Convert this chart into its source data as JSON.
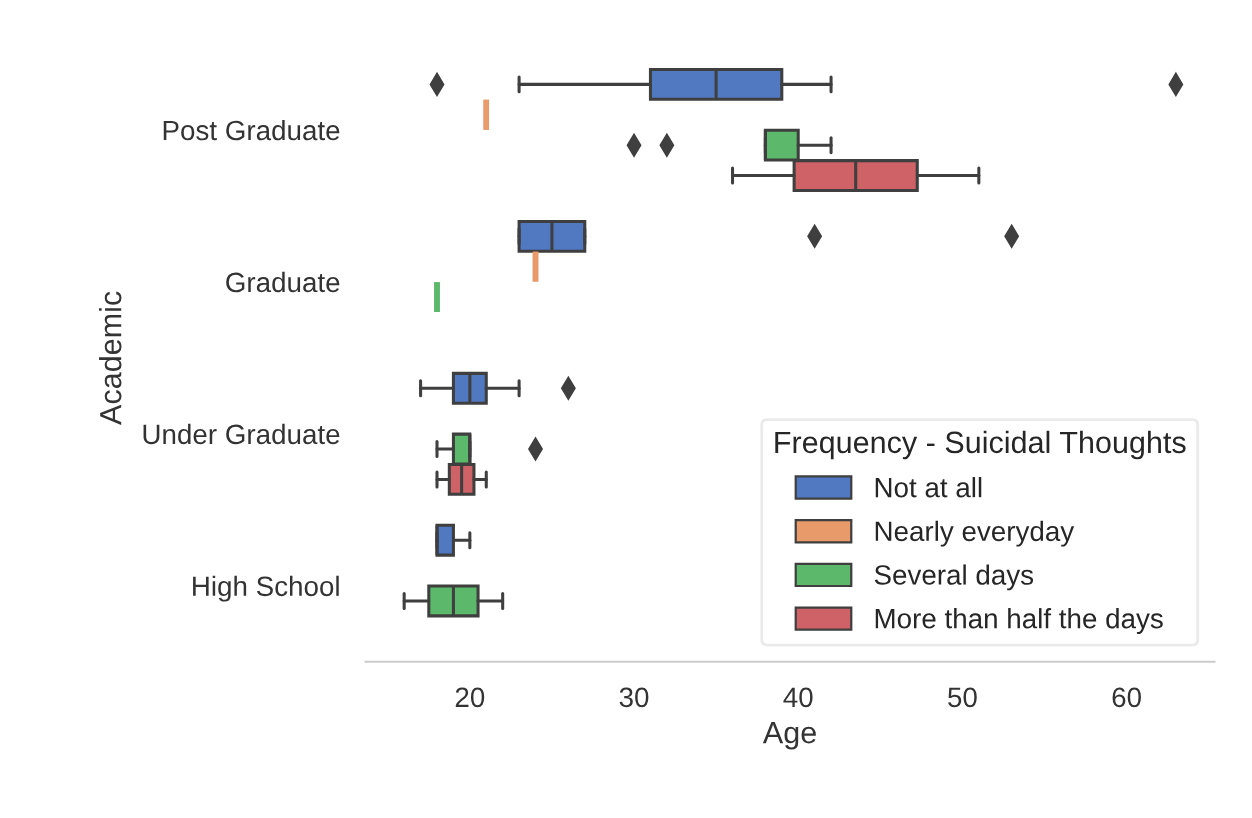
{
  "chart_data": {
    "type": "box",
    "orientation": "horizontal",
    "xlabel": "Age",
    "ylabel": "Academic",
    "legend_title": "Frequency - Suicidal Thoughts",
    "legend": "bottom right",
    "categories": [
      "Post Graduate",
      "Graduate",
      "Under Graduate",
      "High School"
    ],
    "xlim": [
      13.65,
      65.35
    ],
    "xticks": [
      20,
      30,
      40,
      50,
      60
    ],
    "series": [
      {
        "name": "Not at all",
        "color": "#5079c2",
        "boxes": [
          {
            "low": 23,
            "q1": 31,
            "median": 35,
            "q3": 39,
            "high": 42,
            "outliers": [
              18,
              63
            ]
          },
          {
            "low": 23,
            "q1": 23,
            "median": 25,
            "q3": 27,
            "high": 27,
            "outliers": [
              41,
              53
            ]
          },
          {
            "low": 17,
            "q1": 19,
            "median": 20,
            "q3": 21,
            "high": 23,
            "outliers": [
              26
            ]
          },
          {
            "low": 18,
            "q1": 18,
            "median": 18,
            "q3": 19,
            "high": 20
          }
        ]
      },
      {
        "name": "Nearly everyday",
        "color": "#e99a6b",
        "boxes": [
          {
            "low": 21,
            "q1": 21,
            "median": 21,
            "q3": 21,
            "high": 21
          },
          {
            "low": 24,
            "q1": 24,
            "median": 24,
            "q3": 24,
            "high": 24
          },
          null,
          null
        ]
      },
      {
        "name": "Several days",
        "color": "#5cb86b",
        "boxes": [
          {
            "low": 38,
            "q1": 38,
            "median": 38,
            "q3": 40,
            "high": 42,
            "outliers": [
              30,
              32
            ]
          },
          {
            "low": 18,
            "q1": 18,
            "median": 18,
            "q3": 18,
            "high": 18
          },
          {
            "low": 18,
            "q1": 19,
            "median": 20,
            "q3": 20,
            "high": 20,
            "outliers": [
              24
            ]
          },
          {
            "low": 16,
            "q1": 17.5,
            "median": 19,
            "q3": 20.5,
            "high": 22
          }
        ]
      },
      {
        "name": "More than half the days",
        "color": "#cf6266",
        "boxes": [
          {
            "low": 36,
            "q1": 39.75,
            "median": 43.5,
            "q3": 47.25,
            "high": 51
          },
          null,
          {
            "low": 18,
            "q1": 18.75,
            "median": 19.5,
            "q3": 20.25,
            "high": 21
          },
          null
        ]
      }
    ]
  }
}
